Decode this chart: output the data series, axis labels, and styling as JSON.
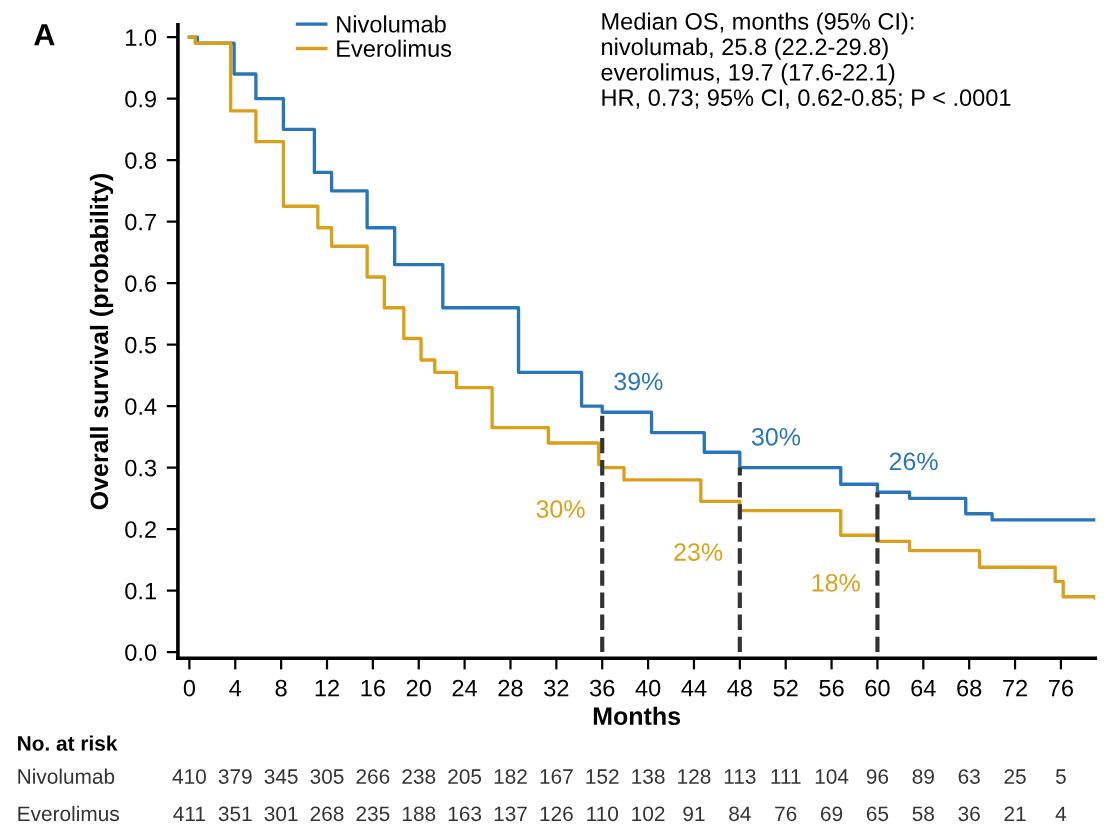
{
  "chart_data": {
    "type": "step",
    "xlabel": "Months",
    "ylabel": "Overall survival (probability)",
    "xlim": [
      -1,
      79
    ],
    "xticks": [
      0,
      4,
      8,
      12,
      16,
      20,
      24,
      28,
      32,
      36,
      40,
      44,
      48,
      52,
      56,
      60,
      64,
      68,
      72,
      76
    ],
    "ylim": [
      -0.01,
      1.02
    ],
    "yticks": [
      {
        "value": 0,
        "label": "0.0"
      },
      0.1,
      0.2,
      0.3,
      0.4,
      0.5,
      0.6,
      0.7,
      0.8,
      0.9,
      {
        "value": 1,
        "label": "1.0"
      }
    ],
    "legend": "top left",
    "grid": false,
    "line_style": "solid",
    "series": [
      {
        "name": "Nivolumab",
        "color": "#2a75b8",
        "x": [
          0,
          0.7,
          3.9,
          5.8,
          8.2,
          10.9,
          12.4,
          15.5,
          17.9,
          22.1,
          28.7,
          34.2,
          36,
          40.3,
          44.9,
          48,
          56.8,
          60,
          62.8,
          67.7,
          70,
          79
        ],
        "values": [
          1.0,
          0.99,
          0.94,
          0.9,
          0.85,
          0.78,
          0.75,
          0.69,
          0.63,
          0.56,
          0.455,
          0.4,
          0.39,
          0.357,
          0.325,
          0.3,
          0.273,
          0.26,
          0.25,
          0.225,
          0.215,
          0.215
        ]
      },
      {
        "name": "Everolimus",
        "color": "#d9a019",
        "x": [
          0,
          0.5,
          3.6,
          5.8,
          8.2,
          11.2,
          12.4,
          15.5,
          17,
          18.7,
          20.2,
          21.4,
          23.3,
          26.4,
          31.3,
          35.7,
          36,
          37.9,
          44.6,
          48,
          56.8,
          60,
          62.8,
          68.9,
          75.5,
          76.2,
          79
        ],
        "values": [
          1.0,
          0.99,
          0.88,
          0.83,
          0.725,
          0.69,
          0.66,
          0.61,
          0.56,
          0.51,
          0.475,
          0.455,
          0.43,
          0.365,
          0.34,
          0.305,
          0.3,
          0.28,
          0.245,
          0.23,
          0.19,
          0.18,
          0.165,
          0.138,
          0.115,
          0.09,
          0.088
        ]
      }
    ],
    "ref_lines": [
      {
        "axis": "x",
        "value": 36,
        "color": "#333333",
        "line_style": "dashed"
      },
      {
        "axis": "x",
        "value": 48,
        "color": "#333333",
        "line_style": "dashed"
      },
      {
        "axis": "x",
        "value": 60,
        "color": "#333333",
        "line_style": "dashed"
      }
    ],
    "annotations": [
      {
        "text": "39%",
        "x": 36,
        "y": 0.39
      },
      {
        "text": "30%",
        "x": 48,
        "y": 0.3
      },
      {
        "text": "26%",
        "x": 60,
        "y": 0.26
      },
      {
        "text": "30%",
        "x": 36,
        "y": 0.3
      },
      {
        "text": "23%",
        "x": 48,
        "y": 0.23
      },
      {
        "text": "18%",
        "x": 60,
        "y": 0.18
      },
      "A",
      "Median OS, months (95% CI):\nnivolumab, 25.8 (22.2-29.8)\neverolimus, 19.7 (17.6-22.1)\nHR, 0.73; 95% CI, 0.62-0.85; P < .0001",
      "No. at risk",
      "Nivolumab 410 379 345 305 266 238 205 182 167 152 138 128 113 111 104 96 89 63 25 5",
      "Everolimus 411 351 301 268 235 188 163 137 126 110 102 91 84 76 69 65 58 36 21 4"
    ]
  }
}
